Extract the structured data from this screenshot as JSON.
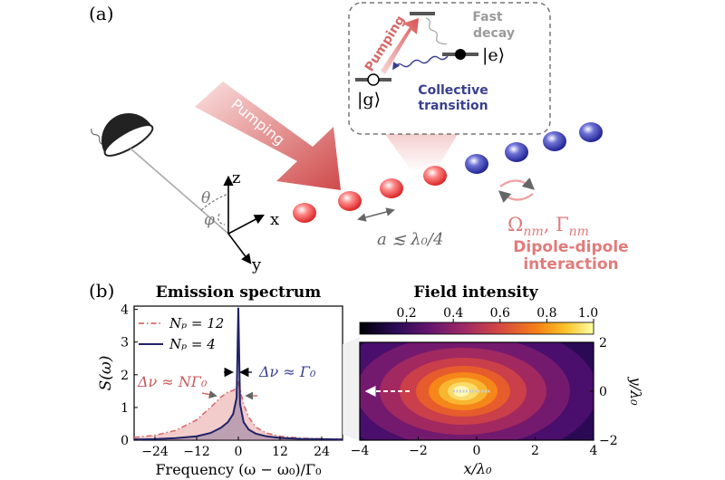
{
  "panel_a": {
    "label": "(a)",
    "arrow_label": "Pumping",
    "axes": {
      "z": "z",
      "x": "x",
      "y": "y",
      "theta": "θ",
      "phi": "φ"
    },
    "spacing_label": "a ≲ λ₀/4",
    "coupling": {
      "symbol": "Ω",
      "sub": "nm",
      "sep": ", ",
      "symbol2": "Γ",
      "sub2": "nm"
    },
    "dipole_line1": "Dipole-dipole",
    "dipole_line2": "interaction",
    "inset": {
      "pumping": "Pumping",
      "fast_line1": "Fast",
      "fast_line2": "decay",
      "ket_e": "|e⟩",
      "ket_g": "|g⟩",
      "collective_line1": "Collective",
      "collective_line2": "transition"
    },
    "colors": {
      "pump": "#d97070",
      "blue": "#3a3f8f",
      "red_text": "#e08080",
      "gray": "#8a8a8a"
    }
  },
  "panel_b": {
    "label": "(b)",
    "spectrum": {
      "title": "Emission spectrum",
      "ylabel": "S(ω)",
      "xlabel": "Frequency (ω − ω₀)/Γ₀",
      "legend": [
        "Nₚ = 12",
        "Nₚ = 4"
      ],
      "annot_left": "Δν ≈ NΓ₀",
      "annot_right": "Δν ≈ Γ₀",
      "xticks": [
        "−24",
        "−12",
        "0",
        "12",
        "24"
      ],
      "yticks": [
        "0",
        "1",
        "2",
        "3",
        "4"
      ]
    },
    "field": {
      "title": "Field intensity",
      "xlabel": "x/λ₀",
      "ylabel": "y/λ₀",
      "cbar_ticks": [
        "0.2",
        "0.4",
        "0.6",
        "0.8",
        "1.0"
      ],
      "xticks": [
        "−4",
        "−2",
        "0",
        "2",
        "4"
      ],
      "yticks": [
        "2",
        "0",
        "−2"
      ]
    }
  },
  "chart_data": [
    {
      "type": "line",
      "title": "Emission spectrum",
      "xlabel": "Frequency (ω − ω₀)/Γ₀",
      "ylabel": "S(ω)",
      "xlim": [
        -30,
        30
      ],
      "ylim": [
        0,
        4.1
      ],
      "x": [
        -30,
        -24,
        -18,
        -12,
        -8,
        -5,
        -3,
        -1.5,
        -0.5,
        0,
        0.5,
        1.5,
        3,
        5,
        8,
        12,
        18,
        24,
        30
      ],
      "series": [
        {
          "name": "Nₚ = 12",
          "values": [
            0.08,
            0.15,
            0.3,
            0.62,
            1.0,
            1.32,
            1.47,
            1.52,
            1.6,
            1.75,
            1.55,
            1.1,
            0.7,
            0.4,
            0.22,
            0.12,
            0.06,
            0.04,
            0.03
          ]
        },
        {
          "name": "Nₚ = 4",
          "values": [
            0.02,
            0.03,
            0.06,
            0.12,
            0.22,
            0.38,
            0.55,
            0.8,
            1.3,
            4.05,
            1.1,
            0.55,
            0.32,
            0.2,
            0.12,
            0.07,
            0.04,
            0.03,
            0.02
          ]
        }
      ],
      "colors": {
        "Nₚ = 12": "#d96a6a",
        "Nₚ = 4": "#1f2266"
      }
    },
    {
      "type": "heatmap",
      "title": "Field intensity",
      "xlabel": "x/λ₀",
      "ylabel": "y/λ₀",
      "xlim": [
        -4,
        4
      ],
      "ylim": [
        -2,
        2
      ],
      "clim": [
        0,
        1.0
      ],
      "colormap": "inferno"
    }
  ]
}
